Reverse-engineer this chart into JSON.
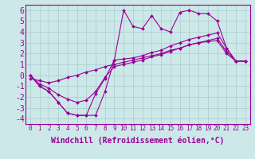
{
  "title": "",
  "xlabel": "Windchill (Refroidissement éolien,°C)",
  "ylabel": "",
  "background_color": "#cce8e8",
  "line_color": "#990099",
  "grid_color": "#aacccc",
  "xlim": [
    -0.5,
    23.5
  ],
  "ylim": [
    -4.5,
    6.5
  ],
  "xticks": [
    0,
    1,
    2,
    3,
    4,
    5,
    6,
    7,
    8,
    9,
    10,
    11,
    12,
    13,
    14,
    15,
    16,
    17,
    18,
    19,
    20,
    21,
    22,
    23
  ],
  "yticks": [
    -4,
    -3,
    -2,
    -1,
    0,
    1,
    2,
    3,
    4,
    5,
    6
  ],
  "x": [
    0,
    1,
    2,
    3,
    4,
    5,
    6,
    7,
    8,
    9,
    10,
    11,
    12,
    13,
    14,
    15,
    16,
    17,
    18,
    19,
    20,
    21,
    22,
    23
  ],
  "y_main": [
    0,
    -1,
    -1.5,
    -2.5,
    -3.5,
    -3.7,
    -3.7,
    -3.7,
    -1.5,
    1.4,
    6.0,
    4.5,
    4.3,
    5.5,
    4.3,
    4.0,
    5.8,
    6.0,
    5.7,
    5.7,
    5.0,
    2.5,
    1.3,
    1.3
  ],
  "y_line2": [
    0,
    -1,
    -1.5,
    -2.5,
    -3.5,
    -3.7,
    -3.7,
    -1.7,
    -0.3,
    1.4,
    1.5,
    1.6,
    1.8,
    2.1,
    2.3,
    2.7,
    3.0,
    3.3,
    3.5,
    3.7,
    3.9,
    2.5,
    1.3,
    1.3
  ],
  "y_line3": [
    0,
    -0.8,
    -1.2,
    -1.8,
    -2.2,
    -2.5,
    -2.3,
    -1.5,
    -0.2,
    0.8,
    1.0,
    1.2,
    1.4,
    1.7,
    1.9,
    2.2,
    2.5,
    2.8,
    3.0,
    3.2,
    3.4,
    2.2,
    1.3,
    1.3
  ],
  "y_line4": [
    -0.3,
    -0.5,
    -0.7,
    -0.5,
    -0.2,
    0.0,
    0.3,
    0.5,
    0.8,
    1.0,
    1.2,
    1.4,
    1.6,
    1.8,
    2.0,
    2.3,
    2.5,
    2.8,
    3.0,
    3.1,
    3.2,
    2.0,
    1.3,
    1.3
  ],
  "fontsize_xlabel": 7,
  "fontsize_yticks": 7,
  "fontsize_xticks": 5.5,
  "marker": "D",
  "markersize": 2.0,
  "linewidth": 0.8
}
